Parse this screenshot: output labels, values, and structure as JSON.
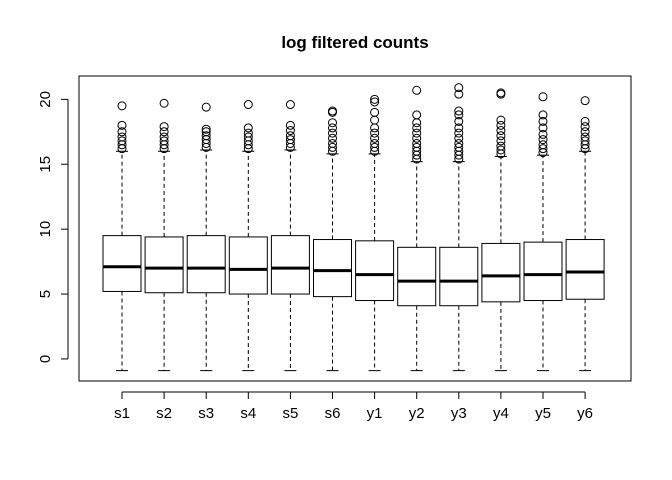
{
  "chart_data": {
    "type": "boxplot",
    "title": "log filtered counts",
    "xlabel": "",
    "ylabel": "",
    "categories": [
      "s1",
      "s2",
      "s3",
      "s4",
      "s5",
      "s6",
      "y1",
      "y2",
      "y3",
      "y4",
      "y5",
      "y6"
    ],
    "ylim": [
      -1.7,
      21.8
    ],
    "yticks": [
      0,
      5,
      10,
      15,
      20
    ],
    "grid": false,
    "boxes": [
      {
        "name": "s1",
        "lower_whisker": -0.9,
        "q1": 5.2,
        "median": 7.1,
        "q3": 9.5,
        "upper_whisker": 16.0,
        "outliers": [
          16.2,
          16.5,
          16.8,
          17.1,
          17.5,
          18.0,
          19.5
        ]
      },
      {
        "name": "s2",
        "lower_whisker": -0.9,
        "q1": 5.1,
        "median": 7.0,
        "q3": 9.4,
        "upper_whisker": 16.0,
        "outliers": [
          16.2,
          16.5,
          16.8,
          17.1,
          17.5,
          17.9,
          19.7
        ]
      },
      {
        "name": "s3",
        "lower_whisker": -0.9,
        "q1": 5.1,
        "median": 7.0,
        "q3": 9.5,
        "upper_whisker": 16.1,
        "outliers": [
          16.3,
          16.6,
          16.9,
          17.2,
          17.5,
          17.7,
          19.4
        ]
      },
      {
        "name": "s4",
        "lower_whisker": -0.9,
        "q1": 5.0,
        "median": 6.9,
        "q3": 9.4,
        "upper_whisker": 16.0,
        "outliers": [
          16.2,
          16.5,
          16.8,
          17.1,
          17.4,
          17.8,
          19.6
        ]
      },
      {
        "name": "s5",
        "lower_whisker": -0.9,
        "q1": 5.0,
        "median": 7.0,
        "q3": 9.5,
        "upper_whisker": 16.1,
        "outliers": [
          16.3,
          16.6,
          16.9,
          17.2,
          17.6,
          18.0,
          19.6
        ]
      },
      {
        "name": "s6",
        "lower_whisker": -0.9,
        "q1": 4.8,
        "median": 6.8,
        "q3": 9.2,
        "upper_whisker": 15.8,
        "outliers": [
          16.0,
          16.3,
          16.6,
          17.0,
          17.4,
          17.8,
          18.2,
          19.0,
          19.1
        ]
      },
      {
        "name": "y1",
        "lower_whisker": -0.9,
        "q1": 4.5,
        "median": 6.5,
        "q3": 9.1,
        "upper_whisker": 15.8,
        "outliers": [
          16.0,
          16.3,
          16.6,
          17.0,
          17.4,
          17.8,
          18.4,
          19.0,
          19.8,
          20.0
        ]
      },
      {
        "name": "y2",
        "lower_whisker": -0.9,
        "q1": 4.1,
        "median": 6.0,
        "q3": 8.6,
        "upper_whisker": 15.2,
        "outliers": [
          15.4,
          15.7,
          16.0,
          16.3,
          16.6,
          17.0,
          17.4,
          17.8,
          18.2,
          18.8,
          20.7
        ]
      },
      {
        "name": "y3",
        "lower_whisker": -0.9,
        "q1": 4.1,
        "median": 6.0,
        "q3": 8.6,
        "upper_whisker": 15.2,
        "outliers": [
          15.4,
          15.7,
          16.0,
          16.3,
          16.6,
          17.0,
          17.4,
          17.8,
          18.3,
          18.8,
          19.1,
          20.4,
          20.9
        ]
      },
      {
        "name": "y4",
        "lower_whisker": -0.9,
        "q1": 4.4,
        "median": 6.4,
        "q3": 8.9,
        "upper_whisker": 15.6,
        "outliers": [
          15.8,
          16.1,
          16.4,
          16.8,
          17.2,
          17.6,
          18.0,
          18.4,
          20.5,
          20.4
        ]
      },
      {
        "name": "y5",
        "lower_whisker": -0.9,
        "q1": 4.5,
        "median": 6.5,
        "q3": 9.0,
        "upper_whisker": 15.7,
        "outliers": [
          15.9,
          16.2,
          16.5,
          16.9,
          17.3,
          17.8,
          18.3,
          18.8,
          20.2
        ]
      },
      {
        "name": "y6",
        "lower_whisker": -0.9,
        "q1": 4.6,
        "median": 6.7,
        "q3": 9.2,
        "upper_whisker": 16.0,
        "outliers": [
          16.2,
          16.5,
          16.8,
          17.1,
          17.5,
          17.9,
          18.3,
          19.9
        ]
      }
    ]
  }
}
